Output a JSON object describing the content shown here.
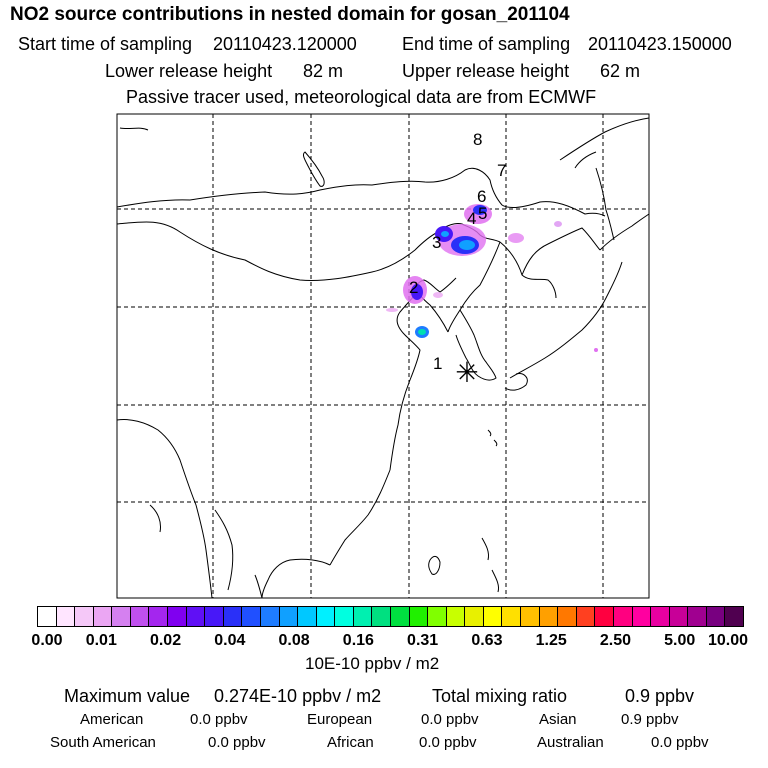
{
  "header": {
    "title": "NO2 source contributions in nested domain for gosan_201104",
    "start_label": "Start time of sampling",
    "start_value": "20110423.120000",
    "end_label": "End time of sampling",
    "end_value": "20110423.150000",
    "lower_label": "Lower release height",
    "lower_value": "82 m",
    "upper_label": "Upper release height",
    "upper_value": "62 m",
    "tracer_note": "Passive tracer used, meteorological data are from ECMWF"
  },
  "map": {
    "markers": [
      "1",
      "2",
      "3",
      "4",
      "5",
      "6",
      "7",
      "8"
    ],
    "release_symbol": "✳"
  },
  "colorbar": {
    "colors": [
      "#ffffff",
      "#ffe5ff",
      "#f5c8f8",
      "#eba6f3",
      "#d580f0",
      "#c050ee",
      "#a426ee",
      "#8000f0",
      "#6010f5",
      "#4818f8",
      "#2a30f8",
      "#2050ff",
      "#1e7cff",
      "#10a0ff",
      "#00c8ff",
      "#00f0ff",
      "#00ffe0",
      "#00f0b0",
      "#00e080",
      "#00e040",
      "#20f000",
      "#80ff00",
      "#c8ff00",
      "#e8f000",
      "#ffff00",
      "#ffe000",
      "#ffc000",
      "#ffa000",
      "#ff7800",
      "#ff4020",
      "#ff0040",
      "#ff0080",
      "#ff00a0",
      "#e800a0",
      "#c80098",
      "#a00090",
      "#780080",
      "#500050"
    ],
    "ticks": [
      "0.00",
      "0.01",
      "0.02",
      "0.04",
      "0.08",
      "0.16",
      "0.31",
      "0.63",
      "1.25",
      "2.50",
      "5.00",
      "10.00"
    ],
    "unit": "10E-10 ppbv / m2"
  },
  "summary": {
    "max_label": "Maximum value",
    "max_value": "0.274E-10 ppbv / m2",
    "total_label": "Total mixing ratio",
    "total_value": "0.9 ppbv",
    "regions": [
      {
        "name": "American",
        "value": "0.0 ppbv"
      },
      {
        "name": "European",
        "value": "0.0 ppbv"
      },
      {
        "name": "Asian",
        "value": "0.9 ppbv"
      },
      {
        "name": "South American",
        "value": "0.0 ppbv"
      },
      {
        "name": "African",
        "value": "0.0 ppbv"
      },
      {
        "name": "Australian",
        "value": "0.0 ppbv"
      }
    ]
  }
}
